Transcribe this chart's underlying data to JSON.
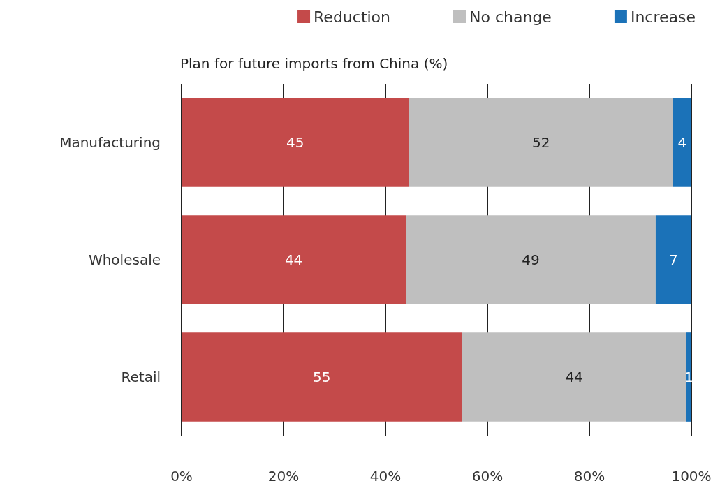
{
  "chart_data": {
    "type": "bar",
    "orientation": "horizontal",
    "stacked": true,
    "title": "Plan for future imports from China (%)",
    "categories": [
      "Manufacturing",
      "Wholesale",
      "Retail"
    ],
    "series": [
      {
        "name": "Reduction",
        "color": "#c44a4a",
        "values": [
          44.6,
          44,
          55
        ],
        "value_labels": [
          "45",
          "44",
          "55"
        ]
      },
      {
        "name": "No change",
        "color": "#bfbfbf",
        "values": [
          51.8,
          49,
          44
        ],
        "value_labels": [
          "52",
          "49",
          "44"
        ]
      },
      {
        "name": "Increase",
        "color": "#1b72b8",
        "values": [
          3.6,
          7,
          1
        ],
        "value_labels": [
          "4",
          "7",
          "1"
        ]
      }
    ],
    "xlim": [
      0,
      100
    ],
    "xticks": [
      {
        "value": 0,
        "label": "0%"
      },
      {
        "value": 20,
        "label": "20%"
      },
      {
        "value": 40,
        "label": "40%"
      },
      {
        "value": 60,
        "label": "60%"
      },
      {
        "value": 80,
        "label": "80%"
      },
      {
        "value": 100,
        "label": "100%"
      }
    ],
    "grid": "x",
    "legend": "top right"
  }
}
